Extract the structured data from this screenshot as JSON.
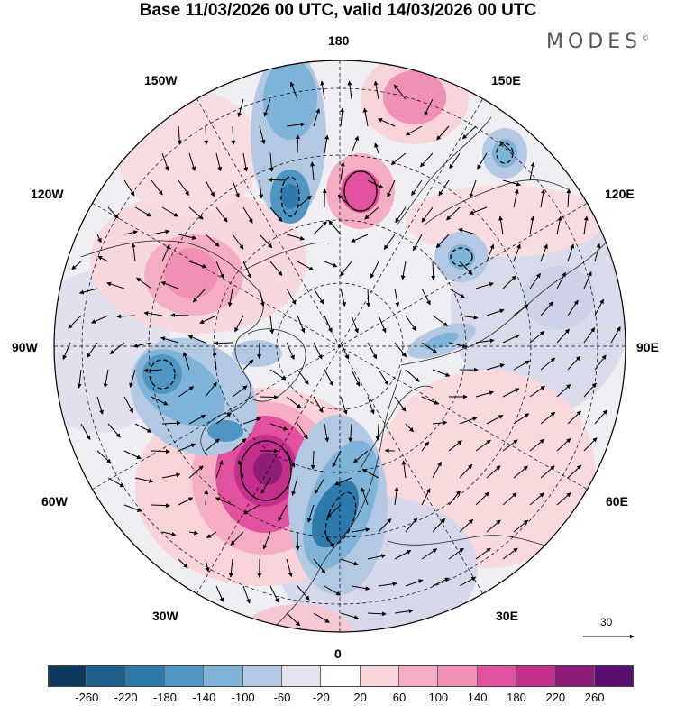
{
  "header": {
    "title": "Base 11/03/2026 00 UTC, valid 14/03/2026 00 UTC",
    "brand": "MODES",
    "brand_mark": "©"
  },
  "map": {
    "projection": "north-polar-stereographic",
    "longitude_labels": {
      "top": "180",
      "bottom": "0",
      "left": "90W",
      "right": "90E",
      "top_left": "150W",
      "top_right": "150E",
      "upper_left": "120W",
      "upper_right": "120E",
      "lower_left": "60W",
      "lower_right": "60E",
      "bottom_left": "30W",
      "bottom_right": "30E"
    },
    "reference_vector_label": "30",
    "colors": {
      "strong_negative": "#2e7aad",
      "moderate_negative": "#7fb3d7",
      "weak_negative": "#cad7ea",
      "neutral": "#ffffff",
      "weak_positive": "#f8d3d8",
      "moderate_positive": "#f090b7",
      "strong_positive": "#c62e8d",
      "land_outline": "#222222",
      "grid_line": "#000000",
      "vector": "#000000"
    },
    "anomaly_centers": [
      {
        "sign": "negative",
        "strength": "strong",
        "location": "Greenland-Labrador"
      },
      {
        "sign": "negative",
        "strength": "strong",
        "location": "North Sea-Scandinavia"
      },
      {
        "sign": "negative",
        "strength": "strong",
        "location": "Bering Sea"
      },
      {
        "sign": "negative",
        "strength": "moderate",
        "location": "North Pacific"
      },
      {
        "sign": "negative",
        "strength": "moderate",
        "location": "Siberia"
      },
      {
        "sign": "positive",
        "strength": "strong",
        "location": "North Atlantic"
      },
      {
        "sign": "positive",
        "strength": "strong",
        "location": "Chukchi Sea"
      },
      {
        "sign": "positive",
        "strength": "strong",
        "location": "Alaska-Yukon"
      },
      {
        "sign": "positive",
        "strength": "moderate",
        "location": "Western North Pacific"
      }
    ]
  },
  "colorbar": {
    "ticks": [
      "-260",
      "-220",
      "-180",
      "-140",
      "-100",
      "-60",
      "-20",
      "20",
      "60",
      "100",
      "140",
      "180",
      "220",
      "260"
    ],
    "colors": [
      "#0d3a5c",
      "#1f5f8b",
      "#2e7aad",
      "#5096c3",
      "#7fb3d7",
      "#b3c9e3",
      "#e5e5f1",
      "#ffffff",
      "#f8d3d8",
      "#f4adc3",
      "#f090b7",
      "#e1519e",
      "#c62e8d",
      "#8e1d78",
      "#5a1072"
    ]
  }
}
